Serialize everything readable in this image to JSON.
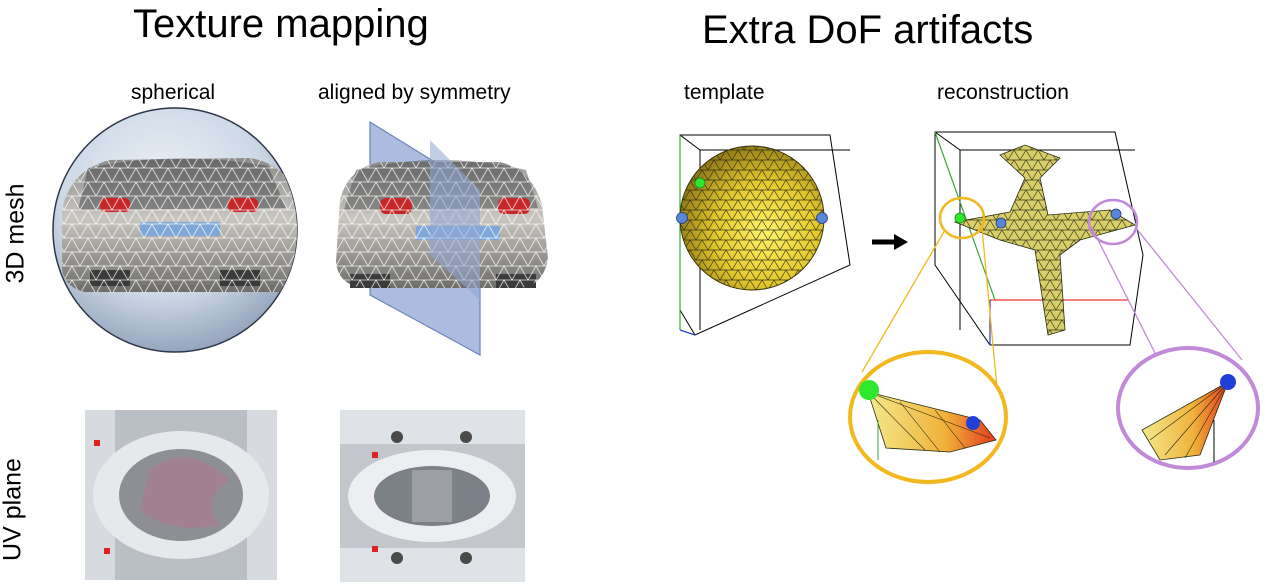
{
  "left_panel": {
    "title": "Texture mapping",
    "columns": [
      "spherical",
      "aligned by symmetry"
    ],
    "rows": [
      "3D mesh",
      "UV plane"
    ]
  },
  "right_panel": {
    "title": "Extra DoF artifacts",
    "columns": [
      "template",
      "reconstruction"
    ]
  },
  "colors": {
    "sphere_yellow": "#e8d23a",
    "zoom_orange_ring": "#f2b81e",
    "zoom_violet_ring": "#c08ad8",
    "green_point": "#2ee82e",
    "blue_point": "#1f3fd6",
    "light_blue_point": "#5a86d6",
    "symmetry_plane": "#8fa6d6"
  }
}
